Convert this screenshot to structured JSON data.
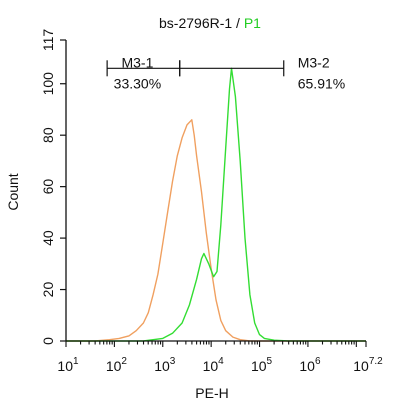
{
  "chart_data": {
    "type": "line",
    "title": {
      "main": "bs-2796R-1",
      "sep": " / ",
      "gate": "P1"
    },
    "xlabel": "PE-H",
    "ylabel": "Count",
    "x_scale": "log",
    "xlim": [
      1,
      7.2
    ],
    "ylim": [
      0,
      117
    ],
    "y_ticks": [
      0,
      20,
      40,
      60,
      80,
      100,
      117
    ],
    "x_ticks": [
      {
        "base": "10",
        "exp": "1",
        "pos": 1
      },
      {
        "base": "10",
        "exp": "2",
        "pos": 2
      },
      {
        "base": "10",
        "exp": "3",
        "pos": 3
      },
      {
        "base": "10",
        "exp": "4",
        "pos": 4
      },
      {
        "base": "10",
        "exp": "5",
        "pos": 5
      },
      {
        "base": "10",
        "exp": "6",
        "pos": 6
      },
      {
        "base": "10",
        "exp": "7.2",
        "pos": 7.2
      }
    ],
    "colors": {
      "orange": "#f0a060",
      "green": "#33dd33",
      "axis": "#111111",
      "gate_text": "#22cc22"
    },
    "series": [
      {
        "color": "orange",
        "points": [
          [
            1.0,
            0
          ],
          [
            1.6,
            0
          ],
          [
            1.9,
            0.5
          ],
          [
            2.1,
            1
          ],
          [
            2.3,
            2
          ],
          [
            2.45,
            4
          ],
          [
            2.6,
            7
          ],
          [
            2.7,
            11
          ],
          [
            2.8,
            18
          ],
          [
            2.9,
            26
          ],
          [
            3.0,
            38
          ],
          [
            3.1,
            50
          ],
          [
            3.2,
            62
          ],
          [
            3.3,
            72
          ],
          [
            3.4,
            79
          ],
          [
            3.5,
            84
          ],
          [
            3.6,
            86
          ],
          [
            3.65,
            80
          ],
          [
            3.7,
            72
          ],
          [
            3.8,
            58
          ],
          [
            3.9,
            42
          ],
          [
            4.0,
            28
          ],
          [
            4.1,
            16
          ],
          [
            4.2,
            8
          ],
          [
            4.3,
            4
          ],
          [
            4.45,
            1.5
          ],
          [
            4.6,
            0.5
          ],
          [
            4.8,
            0
          ],
          [
            7.2,
            0
          ]
        ]
      },
      {
        "color": "green",
        "points": [
          [
            1.0,
            0
          ],
          [
            2.6,
            0
          ],
          [
            2.8,
            0.5
          ],
          [
            3.0,
            1
          ],
          [
            3.2,
            3
          ],
          [
            3.4,
            7
          ],
          [
            3.55,
            14
          ],
          [
            3.7,
            24
          ],
          [
            3.8,
            32
          ],
          [
            3.85,
            34
          ],
          [
            3.95,
            30
          ],
          [
            4.05,
            25
          ],
          [
            4.12,
            27
          ],
          [
            4.2,
            45
          ],
          [
            4.3,
            75
          ],
          [
            4.38,
            98
          ],
          [
            4.42,
            106
          ],
          [
            4.5,
            95
          ],
          [
            4.6,
            70
          ],
          [
            4.7,
            40
          ],
          [
            4.8,
            18
          ],
          [
            4.9,
            7
          ],
          [
            5.0,
            2.5
          ],
          [
            5.1,
            1
          ],
          [
            5.3,
            0.3
          ],
          [
            5.6,
            0
          ],
          [
            7.2,
            0
          ]
        ]
      }
    ],
    "markers": [
      {
        "label": "M3-1",
        "value": "33.30%",
        "x1": 1.85,
        "x2": 3.35,
        "y": 106
      },
      {
        "label": "M3-2",
        "value": "65.91%",
        "x1": 3.35,
        "x2": 5.5,
        "y": 106
      }
    ]
  }
}
